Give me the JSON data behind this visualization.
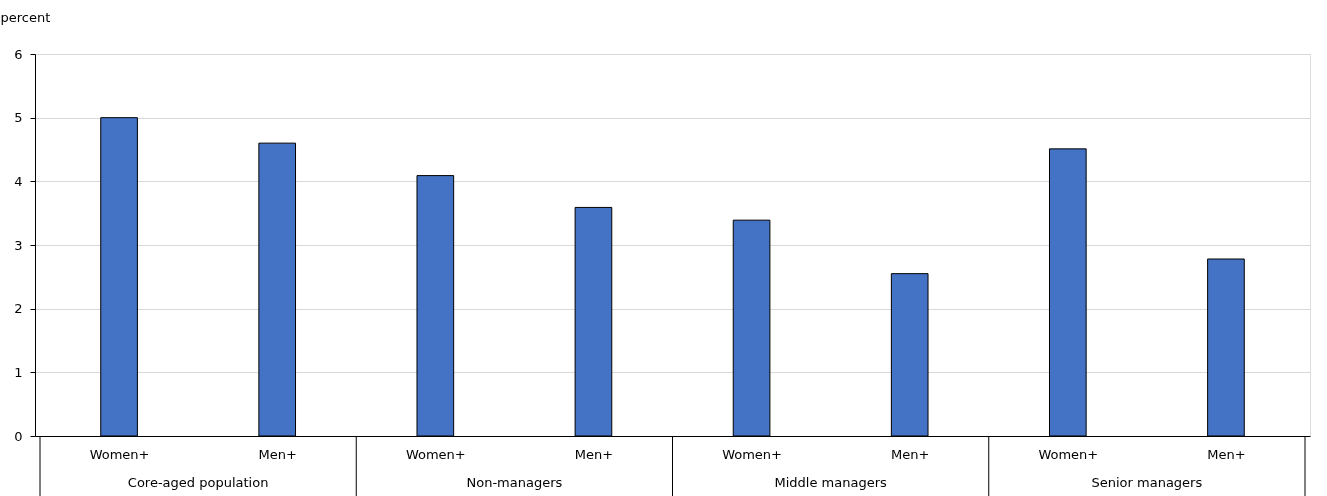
{
  "chart_data": {
    "type": "bar",
    "ylabel": "percent",
    "categories": [
      "Women+",
      "Men+",
      "Women+",
      "Men+",
      "Women+",
      "Men+",
      "Women+",
      "Men+"
    ],
    "values": [
      5.0,
      4.6,
      4.09,
      3.59,
      3.39,
      2.55,
      4.51,
      2.78
    ],
    "color": "#4472c4",
    "ylim": [
      0,
      6
    ],
    "yticks": [
      0,
      1,
      2,
      3,
      4,
      5,
      6
    ],
    "grid": "y",
    "annotations": [
      "Core-aged population",
      "Non-managers",
      "Middle managers",
      "Senior managers"
    ]
  }
}
